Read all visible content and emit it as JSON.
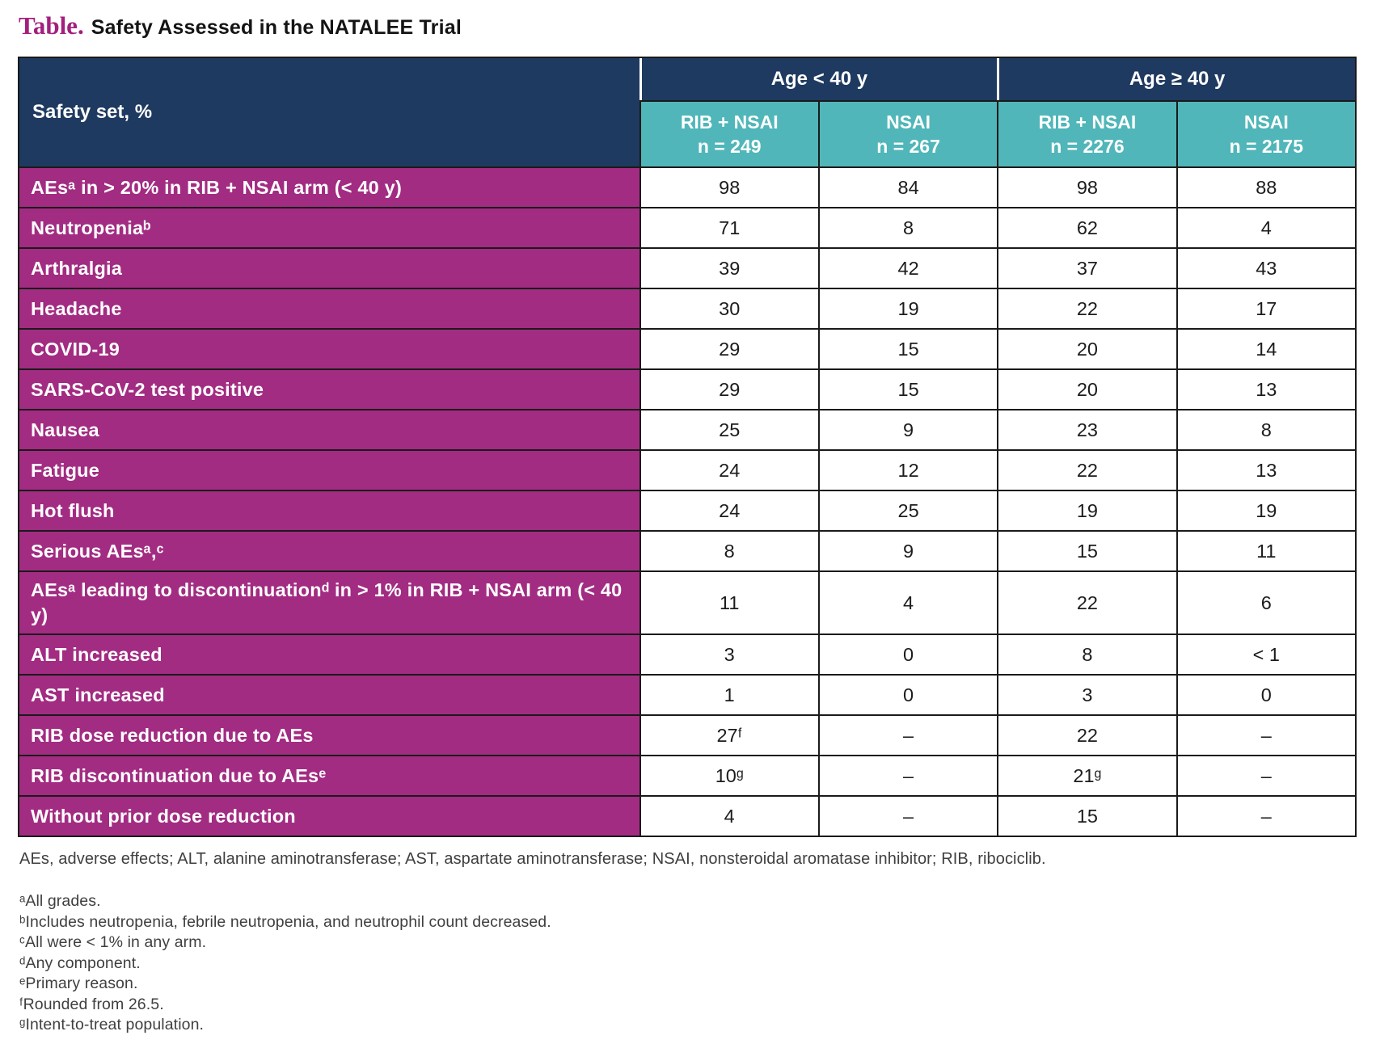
{
  "page": {
    "title_prefix": "Table.",
    "title": "Safety Assessed in the NATALEE Trial"
  },
  "table": {
    "corner_label": "Safety set, %",
    "age_groups": [
      {
        "label": "Age < 40 y"
      },
      {
        "label": "Age ≥ 40 y"
      }
    ],
    "arm_headers": [
      {
        "arm": "RIB + NSAI",
        "n": "n = 249"
      },
      {
        "arm": "NSAI",
        "n": "n = 267"
      },
      {
        "arm": "RIB + NSAI",
        "n": "n = 2276"
      },
      {
        "arm": "NSAI",
        "n": "n = 2175"
      }
    ],
    "rows": [
      {
        "label": "AEsᵃ in > 20% in RIB + NSAI arm (< 40 y)",
        "values": [
          "98",
          "84",
          "98",
          "88"
        ]
      },
      {
        "label": "Neutropeniaᵇ",
        "values": [
          "71",
          "8",
          "62",
          "4"
        ]
      },
      {
        "label": "Arthralgia",
        "values": [
          "39",
          "42",
          "37",
          "43"
        ]
      },
      {
        "label": "Headache",
        "values": [
          "30",
          "19",
          "22",
          "17"
        ]
      },
      {
        "label": "COVID-19",
        "values": [
          "29",
          "15",
          "20",
          "14"
        ]
      },
      {
        "label": "SARS-CoV-2 test positive",
        "values": [
          "29",
          "15",
          "20",
          "13"
        ]
      },
      {
        "label": "Nausea",
        "values": [
          "25",
          "9",
          "23",
          "8"
        ]
      },
      {
        "label": "Fatigue",
        "values": [
          "24",
          "12",
          "22",
          "13"
        ]
      },
      {
        "label": "Hot flush",
        "values": [
          "24",
          "25",
          "19",
          "19"
        ]
      },
      {
        "label": "Serious AEsᵃ,ᶜ",
        "values": [
          "8",
          "9",
          "15",
          "11"
        ]
      },
      {
        "label": "AEsᵃ leading to discontinuationᵈ in > 1% in RIB + NSAI arm (< 40 y)",
        "values": [
          "11",
          "4",
          "22",
          "6"
        ]
      },
      {
        "label": "ALT increased",
        "values": [
          "3",
          "0",
          "8",
          "< 1"
        ]
      },
      {
        "label": "AST increased",
        "values": [
          "1",
          "0",
          "3",
          "0"
        ]
      },
      {
        "label": "RIB dose reduction due to AEs",
        "values": [
          "27ᶠ",
          "–",
          "22",
          "–"
        ]
      },
      {
        "label": "RIB discontinuation due to AEsᵉ",
        "values": [
          "10ᵍ",
          "–",
          "21ᵍ",
          "–"
        ]
      },
      {
        "label": "Without prior dose reduction",
        "values": [
          "4",
          "–",
          "15",
          "–"
        ]
      }
    ]
  },
  "footnotes": {
    "abbreviations": "AEs, adverse effects; ALT, alanine aminotransferase; AST, aspartate aminotransferase; NSAI, nonsteroidal aromatase inhibitor; RIB, ribociclib.",
    "notes": [
      "ᵃAll grades.",
      "ᵇIncludes neutropenia, febrile neutropenia, and neutrophil count decreased.",
      "ᶜAll were < 1% in any arm.",
      "ᵈAny component.",
      "ᵉPrimary reason.",
      "ᶠRounded from 26.5.",
      "ᵍIntent-to-treat population."
    ]
  },
  "colors": {
    "header_navy": "#1f3a60",
    "header_teal": "#50b6b9",
    "row_magenta": "#a22c82",
    "title_accent": "#a31f7d",
    "grid_line": "#1a1a1a"
  },
  "chart_data": {
    "type": "table",
    "title": "Safety Assessed in the NATALEE Trial",
    "row_header": "Safety set, %",
    "column_groups": [
      "Age < 40 y",
      "Age < 40 y",
      "Age ≥ 40 y",
      "Age ≥ 40 y"
    ],
    "columns": [
      "RIB + NSAI n = 249",
      "NSAI n = 267",
      "RIB + NSAI n = 2276",
      "NSAI n = 2175"
    ],
    "rows": [
      [
        "AEs in > 20% in RIB + NSAI arm (< 40 y)",
        "98",
        "84",
        "98",
        "88"
      ],
      [
        "Neutropenia",
        "71",
        "8",
        "62",
        "4"
      ],
      [
        "Arthralgia",
        "39",
        "42",
        "37",
        "43"
      ],
      [
        "Headache",
        "30",
        "19",
        "22",
        "17"
      ],
      [
        "COVID-19",
        "29",
        "15",
        "20",
        "14"
      ],
      [
        "SARS-CoV-2 test positive",
        "29",
        "15",
        "20",
        "13"
      ],
      [
        "Nausea",
        "25",
        "9",
        "23",
        "8"
      ],
      [
        "Fatigue",
        "24",
        "12",
        "22",
        "13"
      ],
      [
        "Hot flush",
        "24",
        "25",
        "19",
        "19"
      ],
      [
        "Serious AEs",
        "8",
        "9",
        "15",
        "11"
      ],
      [
        "AEs leading to discontinuation in > 1% in RIB + NSAI arm (< 40 y)",
        "11",
        "4",
        "22",
        "6"
      ],
      [
        "ALT increased",
        "3",
        "0",
        "8",
        "< 1"
      ],
      [
        "AST increased",
        "1",
        "0",
        "3",
        "0"
      ],
      [
        "RIB dose reduction due to AEs",
        "27",
        "–",
        "22",
        "–"
      ],
      [
        "RIB discontinuation due to AEs",
        "10",
        "–",
        "21",
        "–"
      ],
      [
        "Without prior dose reduction",
        "4",
        "–",
        "15",
        "–"
      ]
    ]
  }
}
